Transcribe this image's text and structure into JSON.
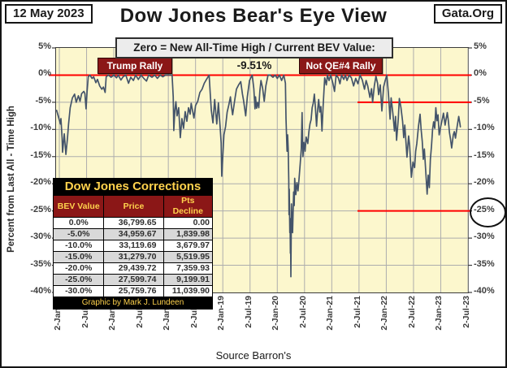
{
  "header": {
    "date_badge": "12 May 2023",
    "title": "Dow Jones Bear's Eye View",
    "site_badge": "Gata.Org"
  },
  "banner": "Zero = New All-Time High / Current BEV Value:  -9.51%",
  "annotations": [
    {
      "label": "Trump Rally"
    },
    {
      "label": "Not QE#4 Rally"
    }
  ],
  "table": {
    "title": "Dow Jones Corrections",
    "columns": [
      "BEV Value",
      "Price",
      "Pts Decline"
    ],
    "rows": [
      [
        "0.0%",
        "36,799.65",
        "0.00"
      ],
      [
        "-5.0%",
        "34,959.67",
        "1,839.98"
      ],
      [
        "-10.0%",
        "33,119.69",
        "3,679.97"
      ],
      [
        "-15.0%",
        "31,279.70",
        "5,519.95"
      ],
      [
        "-20.0%",
        "29,439.72",
        "7,359.93"
      ],
      [
        "-25.0%",
        "27,599.74",
        "9,199.91"
      ],
      [
        "-30.0%",
        "25,759.76",
        "11,039.90"
      ]
    ],
    "footer": "Graphic by Mark J. Lundeen"
  },
  "footer": {
    "source": "Source Barron's"
  },
  "colors": {
    "plot_background": "#fcf7cd",
    "gridline": "#adadad",
    "data_line": "#44546a",
    "highlight_line": "#ff0000",
    "annotation_box": "#8b1717",
    "table_accent_text": "#ffd24d"
  },
  "chart_data": {
    "type": "line",
    "title": "Dow Jones Bear's Eye View",
    "subtitle": "Zero = New All-Time High / Current BEV Value: -9.51%",
    "ylabel": "Percent from Last All - Time  High",
    "xlabel": "Source Barron's",
    "grid": true,
    "ylim": [
      -40,
      5
    ],
    "xlim": [
      2015.94,
      2023.5
    ],
    "current_bev_pct": -9.51,
    "circled_tick": "-25%",
    "y_tick_values": [
      5,
      0,
      -5,
      -10,
      -15,
      -20,
      -25,
      -30,
      -35,
      -40
    ],
    "y_tick_labels": [
      "5%",
      "0%",
      "-5%",
      "-10%",
      "-15%",
      "-20%",
      "-25%",
      "-30%",
      "-35%",
      "-40%"
    ],
    "x_tick_values": [
      2016.0,
      2016.5,
      2017.0,
      2017.5,
      2018.0,
      2018.5,
      2019.0,
      2019.5,
      2020.0,
      2020.5,
      2021.0,
      2021.5,
      2022.0,
      2022.5,
      2023.0,
      2023.5
    ],
    "x_tick_labels": [
      "2-Jan-16",
      "2-Jul-16",
      "2-Jan-17",
      "2-Jul-17",
      "2-Jan-18",
      "2-Jul-18",
      "2-Jan-19",
      "2-Jul-19",
      "2-Jan-20",
      "2-Jul-20",
      "2-Jan-21",
      "2-Jul-21",
      "2-Jan-22",
      "2-Jul-22",
      "2-Jan-23",
      "2-Jul-23"
    ],
    "red_lines": [
      {
        "level": 0,
        "span": "full"
      },
      {
        "level": -5,
        "span": "right"
      },
      {
        "level": -25,
        "span": "right"
      }
    ],
    "series": [
      {
        "name": "Dow Jones BEV (% from last all-time high)",
        "points": [
          [
            2015.95,
            -6.5
          ],
          [
            2016.02,
            -9
          ],
          [
            2016.03,
            -8
          ],
          [
            2016.05,
            -11.5
          ],
          [
            2016.06,
            -14.2
          ],
          [
            2016.09,
            -10.8
          ],
          [
            2016.12,
            -14.6
          ],
          [
            2016.15,
            -11.5
          ],
          [
            2016.17,
            -9
          ],
          [
            2016.2,
            -6
          ],
          [
            2016.24,
            -4.2
          ],
          [
            2016.28,
            -3.5
          ],
          [
            2016.31,
            -5
          ],
          [
            2016.35,
            -3.8
          ],
          [
            2016.38,
            -4.8
          ],
          [
            2016.41,
            -3.4
          ],
          [
            2016.45,
            -3
          ],
          [
            2016.47,
            -3.4
          ],
          [
            2016.49,
            -6.2
          ],
          [
            2016.51,
            -3
          ],
          [
            2016.53,
            -0.3
          ],
          [
            2016.56,
            0
          ],
          [
            2016.6,
            -0.6
          ],
          [
            2016.63,
            -0.3
          ],
          [
            2016.67,
            -1.4
          ],
          [
            2016.7,
            -0.8
          ],
          [
            2016.74,
            -2
          ],
          [
            2016.78,
            -2.6
          ],
          [
            2016.81,
            -2.2
          ],
          [
            2016.84,
            -3.2
          ],
          [
            2016.86,
            -0.3
          ],
          [
            2016.9,
            0
          ],
          [
            2016.95,
            -0.4
          ],
          [
            2017,
            0
          ],
          [
            2017.05,
            -0.5
          ],
          [
            2017.08,
            0
          ],
          [
            2017.13,
            -0.9
          ],
          [
            2017.17,
            -0.3
          ],
          [
            2017.22,
            0
          ],
          [
            2017.27,
            -1.5
          ],
          [
            2017.31,
            -0.4
          ],
          [
            2017.36,
            -1
          ],
          [
            2017.4,
            0
          ],
          [
            2017.45,
            -0.8
          ],
          [
            2017.5,
            0
          ],
          [
            2017.55,
            -0.6
          ],
          [
            2017.6,
            -1.1
          ],
          [
            2017.64,
            0
          ],
          [
            2017.7,
            -0.4
          ],
          [
            2017.75,
            0
          ],
          [
            2017.8,
            -0.6
          ],
          [
            2017.85,
            0
          ],
          [
            2017.9,
            -0.3
          ],
          [
            2017.95,
            0
          ],
          [
            2018,
            0
          ],
          [
            2018.07,
            0
          ],
          [
            2018.09,
            -4
          ],
          [
            2018.1,
            -10.2
          ],
          [
            2018.12,
            -6.5
          ],
          [
            2018.14,
            -4.9
          ],
          [
            2018.16,
            -7.5
          ],
          [
            2018.19,
            -6
          ],
          [
            2018.22,
            -11.5
          ],
          [
            2018.25,
            -8
          ],
          [
            2018.28,
            -9.8
          ],
          [
            2018.31,
            -6.7
          ],
          [
            2018.34,
            -8.5
          ],
          [
            2018.37,
            -6
          ],
          [
            2018.4,
            -7.2
          ],
          [
            2018.42,
            -5.2
          ],
          [
            2018.45,
            -6.8
          ],
          [
            2018.47,
            -7.9
          ],
          [
            2018.5,
            -5.6
          ],
          [
            2018.54,
            -4.8
          ],
          [
            2018.58,
            -3.2
          ],
          [
            2018.62,
            -2.6
          ],
          [
            2018.66,
            -1.5
          ],
          [
            2018.7,
            -0.8
          ],
          [
            2018.75,
            0
          ],
          [
            2018.77,
            -3.5
          ],
          [
            2018.79,
            -6.5
          ],
          [
            2018.82,
            -8.8
          ],
          [
            2018.85,
            -4.5
          ],
          [
            2018.87,
            -6.8
          ],
          [
            2018.89,
            -9
          ],
          [
            2018.92,
            -5.1
          ],
          [
            2018.95,
            -9.5
          ],
          [
            2018.97,
            -12.5
          ],
          [
            2018.98,
            -18.6
          ],
          [
            2019,
            -15
          ],
          [
            2019.02,
            -11
          ],
          [
            2019.05,
            -9.5
          ],
          [
            2019.08,
            -6.8
          ],
          [
            2019.11,
            -5.5
          ],
          [
            2019.14,
            -4
          ],
          [
            2019.16,
            -5.8
          ],
          [
            2019.18,
            -7.3
          ],
          [
            2019.22,
            -4.5
          ],
          [
            2019.25,
            -2.6
          ],
          [
            2019.29,
            -1.8
          ],
          [
            2019.33,
            -1.2
          ],
          [
            2019.36,
            -3.5
          ],
          [
            2019.38,
            -4.6
          ],
          [
            2019.42,
            -7.5
          ],
          [
            2019.45,
            -4
          ],
          [
            2019.49,
            -1
          ],
          [
            2019.54,
            0
          ],
          [
            2019.57,
            -2.5
          ],
          [
            2019.59,
            -6.2
          ],
          [
            2019.6,
            -4
          ],
          [
            2019.62,
            -6.1
          ],
          [
            2019.64,
            -5
          ],
          [
            2019.66,
            -6
          ],
          [
            2019.68,
            -3
          ],
          [
            2019.7,
            -1
          ],
          [
            2019.73,
            -2.4
          ],
          [
            2019.76,
            -4.8
          ],
          [
            2019.79,
            -2
          ],
          [
            2019.83,
            0
          ],
          [
            2019.87,
            0
          ],
          [
            2019.92,
            -0.4
          ],
          [
            2019.96,
            0
          ],
          [
            2020,
            -0.6
          ],
          [
            2020.04,
            0
          ],
          [
            2020.08,
            -1
          ],
          [
            2020.12,
            0
          ],
          [
            2020.15,
            -1.5
          ],
          [
            2020.16,
            -8
          ],
          [
            2020.18,
            -14
          ],
          [
            2020.19,
            -11
          ],
          [
            2020.2,
            -13.5
          ],
          [
            2020.21,
            -19.3
          ],
          [
            2020.215,
            -25.7
          ],
          [
            2020.22,
            -21
          ],
          [
            2020.23,
            -29
          ],
          [
            2020.235,
            -26.4
          ],
          [
            2020.24,
            -32.8
          ],
          [
            2020.245,
            -30.2
          ],
          [
            2020.25,
            -37.1
          ],
          [
            2020.26,
            -23.7
          ],
          [
            2020.27,
            -26.6
          ],
          [
            2020.28,
            -29
          ],
          [
            2020.3,
            -21.5
          ],
          [
            2020.31,
            -24
          ],
          [
            2020.32,
            -19
          ],
          [
            2020.34,
            -22
          ],
          [
            2020.36,
            -19.8
          ],
          [
            2020.38,
            -21.3
          ],
          [
            2020.4,
            -19
          ],
          [
            2020.42,
            -16.5
          ],
          [
            2020.44,
            -13.6
          ],
          [
            2020.455,
            -6.9
          ],
          [
            2020.47,
            -15
          ],
          [
            2020.49,
            -12.4
          ],
          [
            2020.51,
            -14
          ],
          [
            2020.53,
            -11.4
          ],
          [
            2020.56,
            -12.6
          ],
          [
            2020.58,
            -10.4
          ],
          [
            2020.6,
            -9
          ],
          [
            2020.62,
            -8.2
          ],
          [
            2020.64,
            -6
          ],
          [
            2020.66,
            -5.2
          ],
          [
            2020.68,
            -3.5
          ],
          [
            2020.7,
            -6
          ],
          [
            2020.72,
            -9.4
          ],
          [
            2020.74,
            -6.5
          ],
          [
            2020.76,
            -4.5
          ],
          [
            2020.78,
            -6.8
          ],
          [
            2020.8,
            -5.8
          ],
          [
            2020.82,
            -10.3
          ],
          [
            2020.84,
            -6
          ],
          [
            2020.87,
            -0.5
          ],
          [
            2020.9,
            -1.8
          ],
          [
            2020.92,
            0
          ],
          [
            2020.95,
            -1
          ],
          [
            2020.98,
            0
          ],
          [
            2021.02,
            -1.5
          ],
          [
            2021.05,
            -3
          ],
          [
            2021.08,
            0
          ],
          [
            2021.12,
            -0.5
          ],
          [
            2021.15,
            -1.6
          ],
          [
            2021.18,
            0
          ],
          [
            2021.22,
            -0.8
          ],
          [
            2021.25,
            0
          ],
          [
            2021.28,
            -1
          ],
          [
            2021.32,
            0
          ],
          [
            2021.36,
            -0.5
          ],
          [
            2021.4,
            -2
          ],
          [
            2021.44,
            -0.6
          ],
          [
            2021.48,
            -1.6
          ],
          [
            2021.52,
            0
          ],
          [
            2021.56,
            -0.9
          ],
          [
            2021.6,
            -2.6
          ],
          [
            2021.63,
            -1
          ],
          [
            2021.66,
            -2
          ],
          [
            2021.7,
            -4.1
          ],
          [
            2021.73,
            -2.5
          ],
          [
            2021.75,
            -5
          ],
          [
            2021.78,
            -2
          ],
          [
            2021.81,
            -0.2
          ],
          [
            2021.84,
            -1.5
          ],
          [
            2021.86,
            -3.6
          ],
          [
            2021.89,
            -1.8
          ],
          [
            2021.92,
            -6.6
          ],
          [
            2021.95,
            -2.2
          ],
          [
            2021.98,
            -1
          ],
          [
            2022.01,
            0
          ],
          [
            2022.04,
            -3.5
          ],
          [
            2022.07,
            -8.1
          ],
          [
            2022.09,
            -4.2
          ],
          [
            2022.12,
            -7
          ],
          [
            2022.15,
            -10.3
          ],
          [
            2022.17,
            -7.6
          ],
          [
            2022.19,
            -12
          ],
          [
            2022.22,
            -8
          ],
          [
            2022.24,
            -4.3
          ],
          [
            2022.27,
            -6
          ],
          [
            2022.3,
            -8.5
          ],
          [
            2022.32,
            -11.5
          ],
          [
            2022.34,
            -9.2
          ],
          [
            2022.38,
            -15.1
          ],
          [
            2022.41,
            -11.2
          ],
          [
            2022.43,
            -13
          ],
          [
            2022.46,
            -18.8
          ],
          [
            2022.49,
            -16
          ],
          [
            2022.52,
            -17
          ],
          [
            2022.54,
            -14
          ],
          [
            2022.56,
            -12.6
          ],
          [
            2022.59,
            -9.5
          ],
          [
            2022.62,
            -7.2
          ],
          [
            2022.64,
            -10
          ],
          [
            2022.66,
            -12.2
          ],
          [
            2022.68,
            -15.5
          ],
          [
            2022.7,
            -13.6
          ],
          [
            2022.72,
            -17
          ],
          [
            2022.75,
            -21.9
          ],
          [
            2022.77,
            -18.4
          ],
          [
            2022.79,
            -20.7
          ],
          [
            2022.81,
            -15.5
          ],
          [
            2022.83,
            -13
          ],
          [
            2022.85,
            -10
          ],
          [
            2022.87,
            -8.6
          ],
          [
            2022.89,
            -9.8
          ],
          [
            2022.91,
            -6
          ],
          [
            2022.93,
            -8.4
          ],
          [
            2022.95,
            -7.3
          ],
          [
            2022.97,
            -11
          ],
          [
            2023,
            -9.4
          ],
          [
            2023.03,
            -8
          ],
          [
            2023.05,
            -7
          ],
          [
            2023.08,
            -9.2
          ],
          [
            2023.1,
            -8
          ],
          [
            2023.12,
            -6.9
          ],
          [
            2023.14,
            -8.5
          ],
          [
            2023.16,
            -10.6
          ],
          [
            2023.18,
            -11.8
          ],
          [
            2023.2,
            -13.4
          ],
          [
            2023.23,
            -11
          ],
          [
            2023.25,
            -10.4
          ],
          [
            2023.27,
            -11.6
          ],
          [
            2023.3,
            -9.5
          ],
          [
            2023.33,
            -7.6
          ],
          [
            2023.35,
            -8.8
          ],
          [
            2023.36,
            -9.51
          ]
        ]
      }
    ]
  }
}
